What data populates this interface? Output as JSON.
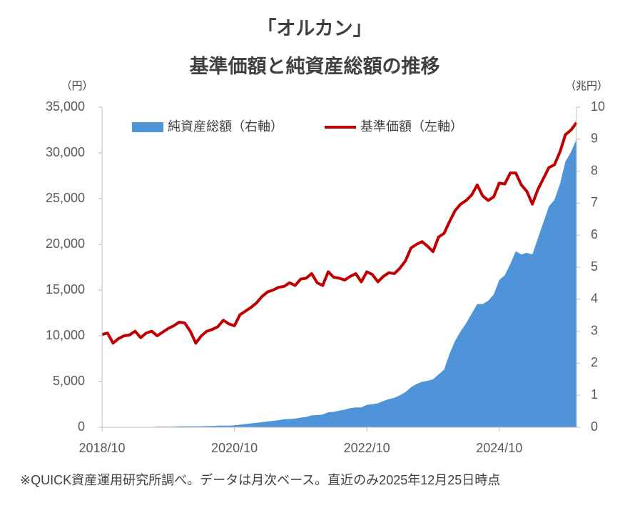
{
  "chart_data": {
    "type": "area-line",
    "title": [
      "「オルカン」",
      "基準価額と純資産総額の推移"
    ],
    "ylabel": "（円）",
    "y2label": "（兆円）",
    "note": "※QUICK資産運用研究所調べ。データは月次ベース。直近のみ2025年12月25日時点",
    "legend": "top",
    "grid": false,
    "categories": [
      "2018/10",
      null,
      null,
      null,
      null,
      null,
      null,
      null,
      null,
      null,
      null,
      null,
      null,
      null,
      null,
      null,
      null,
      null,
      null,
      null,
      null,
      null,
      null,
      null,
      "2020/10",
      null,
      null,
      null,
      null,
      null,
      null,
      null,
      null,
      null,
      null,
      null,
      null,
      null,
      null,
      null,
      null,
      null,
      null,
      null,
      null,
      null,
      null,
      null,
      "2022/10",
      null,
      null,
      null,
      null,
      null,
      null,
      null,
      null,
      null,
      null,
      null,
      null,
      null,
      null,
      null,
      null,
      null,
      null,
      null,
      null,
      null,
      null,
      null,
      "2024/10",
      null,
      null,
      null,
      null,
      null,
      null,
      null,
      null,
      null,
      null,
      null,
      null,
      null,
      null
    ],
    "ylim": [
      0,
      35000
    ],
    "yticks": [
      0,
      {
        "value": 5000,
        "label": "5,000"
      },
      {
        "value": 10000,
        "label": "10,000"
      },
      {
        "value": 15000,
        "label": "15,000"
      },
      {
        "value": 20000,
        "label": "20,000"
      },
      {
        "value": 25000,
        "label": "25,000"
      },
      {
        "value": 30000,
        "label": "30,000"
      },
      {
        "value": 35000,
        "label": "35,000"
      }
    ],
    "y2lim": [
      0,
      10
    ],
    "y2ticks": [
      0,
      1,
      2,
      3,
      4,
      5,
      6,
      7,
      8,
      9,
      10
    ],
    "series": [
      {
        "name": "純資産総額（右軸）",
        "type": "area",
        "axis": "y2",
        "color": "#4f93d8",
        "values": [
          0,
          0,
          0,
          0,
          0.01,
          0.01,
          0.01,
          0.01,
          0.01,
          0.01,
          0.02,
          0.02,
          0.02,
          0.02,
          0.03,
          0.03,
          0.03,
          0.03,
          0.03,
          0.04,
          0.04,
          0.05,
          0.05,
          0.05,
          0.06,
          0.08,
          0.1,
          0.12,
          0.14,
          0.16,
          0.18,
          0.2,
          0.22,
          0.25,
          0.26,
          0.27,
          0.3,
          0.32,
          0.37,
          0.38,
          0.4,
          0.47,
          0.48,
          0.52,
          0.55,
          0.6,
          0.62,
          0.62,
          0.7,
          0.72,
          0.75,
          0.82,
          0.88,
          0.92,
          1.0,
          1.1,
          1.25,
          1.35,
          1.42,
          1.45,
          1.5,
          1.65,
          1.8,
          2.3,
          2.7,
          3.0,
          3.25,
          3.55,
          3.85,
          3.85,
          3.95,
          4.15,
          4.6,
          4.75,
          5.1,
          5.5,
          5.4,
          5.45,
          5.4,
          5.9,
          6.4,
          6.9,
          7.1,
          7.6,
          8.3,
          8.6,
          9.0
        ]
      },
      {
        "name": "基準価額（左軸）",
        "type": "line",
        "color": "#c00000",
        "values": [
          10150,
          10300,
          9200,
          9700,
          10000,
          10100,
          10500,
          9800,
          10300,
          10500,
          10000,
          10400,
          10800,
          11100,
          11500,
          11400,
          10500,
          9200,
          10000,
          10500,
          10700,
          11000,
          11700,
          11300,
          11100,
          12300,
          12700,
          13100,
          13600,
          14300,
          14800,
          15000,
          15300,
          15400,
          15800,
          15500,
          16200,
          16300,
          16800,
          15800,
          15500,
          17000,
          16400,
          16300,
          16100,
          16500,
          16800,
          15900,
          17000,
          16700,
          15900,
          16500,
          16900,
          16800,
          17400,
          18200,
          19600,
          20000,
          20300,
          19800,
          19200,
          20800,
          21200,
          22500,
          23700,
          24400,
          24800,
          25400,
          26500,
          25300,
          24800,
          25200,
          26700,
          26600,
          27800,
          27800,
          26500,
          25800,
          24400,
          26000,
          27200,
          28400,
          28700,
          30100,
          32000,
          32500,
          33300
        ]
      }
    ]
  }
}
